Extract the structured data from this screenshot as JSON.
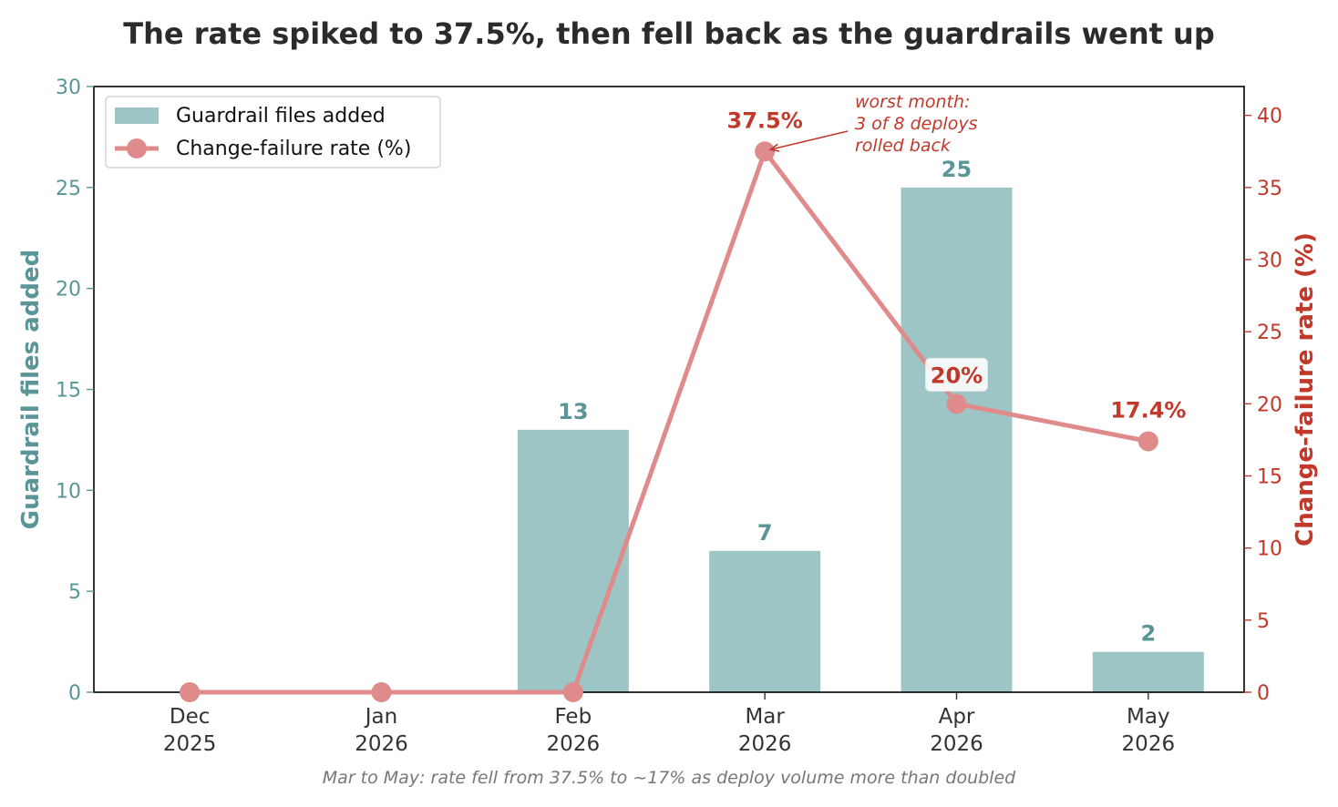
{
  "chart_data": {
    "type": "bar",
    "title": "The rate spiked to 37.5%, then fell back as the guardrails went up",
    "categories": [
      [
        "Dec",
        "2025"
      ],
      [
        "Jan",
        "2026"
      ],
      [
        "Feb",
        "2026"
      ],
      [
        "Mar",
        "2026"
      ],
      [
        "Apr",
        "2026"
      ],
      [
        "May",
        "2026"
      ]
    ],
    "series": [
      {
        "name": "Guardrail files added",
        "type": "bar",
        "axis": "left",
        "color": "#9dc5c5",
        "values": [
          0,
          0,
          13,
          7,
          25,
          2
        ],
        "labels": [
          "",
          "",
          "13",
          "7",
          "25",
          "2"
        ]
      },
      {
        "name": "Change-failure rate (%)",
        "type": "line",
        "axis": "right",
        "color": "#e08b8b",
        "values": [
          0,
          0,
          0,
          37.5,
          20,
          17.4
        ],
        "labels": [
          "",
          "",
          "",
          "37.5%",
          "20%",
          "17.4%"
        ]
      }
    ],
    "ylabel_left": "Guardrail files added",
    "ylabel_right": "Change-failure rate (%)",
    "ylim_left": [
      0,
      30
    ],
    "ylim_right": [
      0,
      42
    ],
    "yticks_left": [
      0,
      5,
      10,
      15,
      20,
      25,
      30
    ],
    "yticks_right": [
      0,
      5,
      10,
      15,
      20,
      25,
      30,
      35,
      40
    ],
    "left_axis_color": "#5a9597",
    "right_axis_color": "#c0392b",
    "label_color_bar": "#5a9597",
    "label_color_line": "#c0392b",
    "legend_position": "top-left",
    "grid": false,
    "annotation": {
      "lines": [
        "worst month:",
        "3 of 8 deploys",
        "rolled back"
      ],
      "target_category": "Mar",
      "target_value": 37.5
    },
    "caption": "Mar to May: rate fell from 37.5% to ~17% as deploy volume more than doubled"
  }
}
